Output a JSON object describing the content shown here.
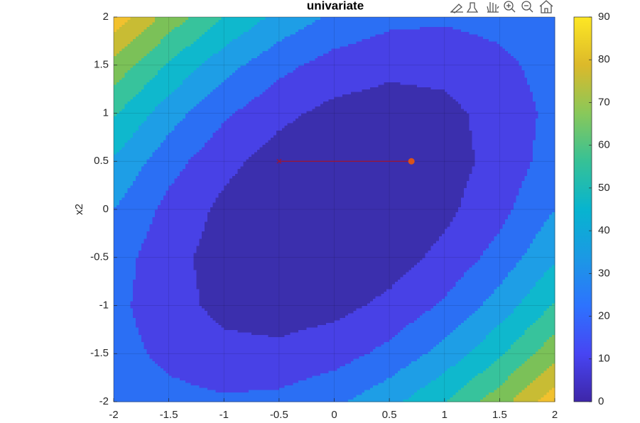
{
  "chart_data": {
    "type": "contourf",
    "title": "univariate",
    "ylabel": "x2",
    "x": [
      -2,
      -1.5,
      -1,
      -0.5,
      0,
      0.5,
      1,
      1.5,
      2
    ],
    "y": [
      -2,
      -1.5,
      -1,
      -0.5,
      0,
      0.5,
      1,
      1.5,
      2
    ],
    "z": [
      [
        30,
        23.9,
        21.5,
        22.9,
        28,
        36.9,
        49.5,
        65.9,
        86
      ],
      [
        24.8,
        16.9,
        12.8,
        12.4,
        15.8,
        22.9,
        33.8,
        48.4,
        66.8
      ],
      [
        23,
        13.4,
        7.5,
        5.4,
        7,
        12.4,
        21.5,
        34.4,
        51
      ],
      [
        24.8,
        13.4,
        5.8,
        1.9,
        1.8,
        5.4,
        12.8,
        23.9,
        38.8
      ],
      [
        30,
        16.9,
        7.5,
        1.9,
        0,
        1.9,
        7.5,
        16.9,
        30
      ],
      [
        38.8,
        23.9,
        12.8,
        5.4,
        1.8,
        1.9,
        5.8,
        13.4,
        24.8
      ],
      [
        51,
        34.4,
        21.5,
        12.4,
        7,
        5.4,
        7.5,
        13.4,
        23
      ],
      [
        66.8,
        48.4,
        33.8,
        22.9,
        15.8,
        12.4,
        12.8,
        16.9,
        24.8
      ],
      [
        86,
        65.9,
        49.5,
        36.9,
        28,
        22.9,
        21.5,
        23.9,
        30
      ]
    ],
    "levels": [
      0,
      10,
      20,
      30,
      40,
      50,
      60,
      70,
      80,
      90
    ],
    "colors": [
      "#3b2fad",
      "#4841e6",
      "#2b6ff4",
      "#1e9ee6",
      "#0fb8cd",
      "#37c39c",
      "#7bc158",
      "#c8bc34",
      "#f2c12e"
    ],
    "xlim": [
      -2,
      2
    ],
    "ylim": [
      -2,
      2
    ],
    "xticks": [
      -2,
      -1.5,
      -1,
      -0.5,
      0,
      0.5,
      1,
      1.5,
      2
    ],
    "yticks": [
      -2,
      -1.5,
      -1,
      -0.5,
      0,
      0.5,
      1,
      1.5,
      2
    ],
    "grid": true,
    "colorbar": {
      "clim": [
        0,
        90
      ],
      "ticks": [
        0,
        10,
        20,
        30,
        40,
        50,
        60,
        70,
        80,
        90
      ],
      "colors": [
        "#3e26a8",
        "#4745f3",
        "#2d73fe",
        "#1b99e4",
        "#07b4cf",
        "#36c196",
        "#89c85a",
        "#dcb92a",
        "#fde724"
      ]
    },
    "path": {
      "x": [
        -0.5,
        0.7
      ],
      "y": [
        0.5,
        0.5
      ],
      "color": "#a2142f",
      "end_color": "#d95319"
    }
  }
}
